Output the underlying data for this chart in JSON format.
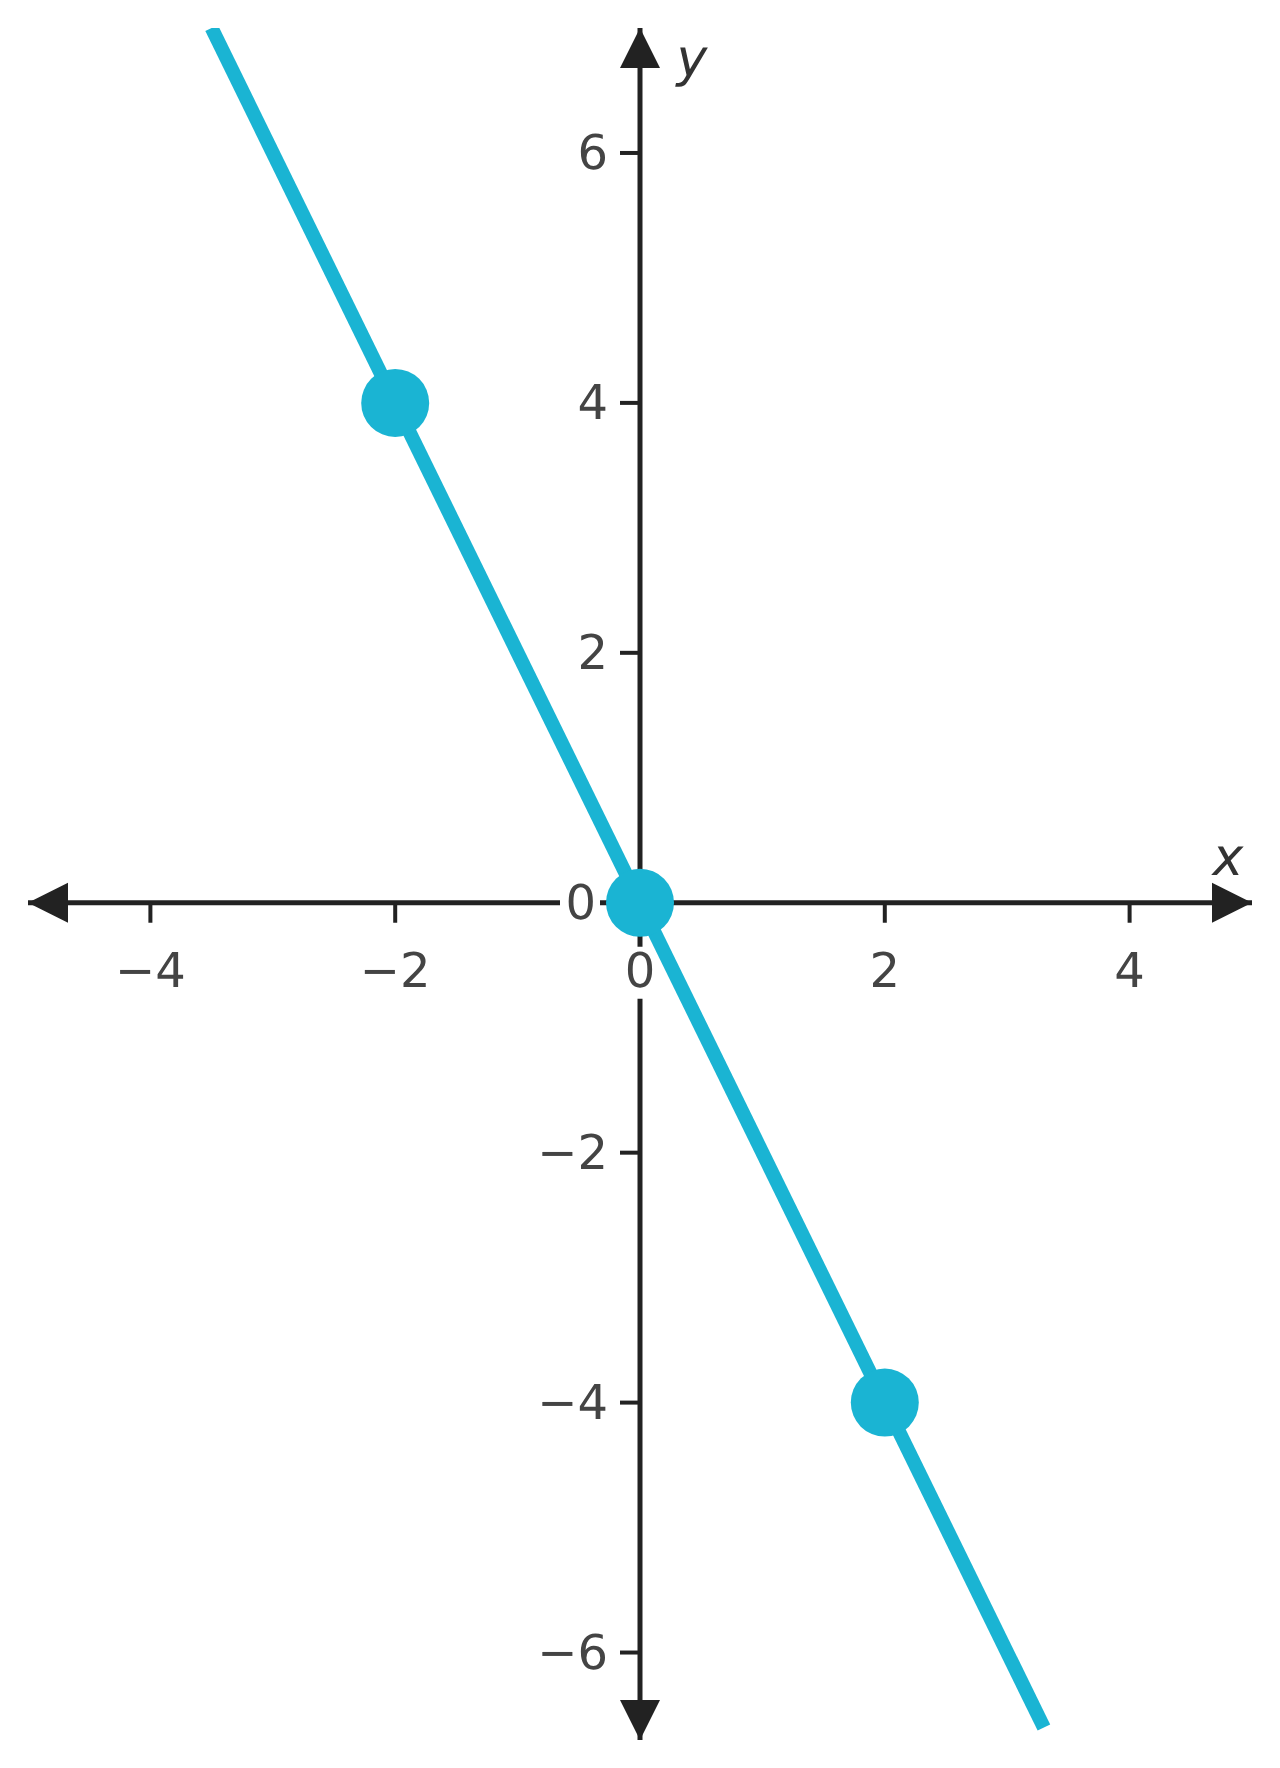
{
  "chart_data": {
    "type": "line",
    "xlabel": "x",
    "ylabel": "y",
    "xlim": [
      -5,
      5
    ],
    "ylim": [
      -6.7,
      7
    ],
    "xticks": [
      {
        "value": -4,
        "label": "−4"
      },
      {
        "value": -2,
        "label": "−2"
      },
      0,
      2,
      4
    ],
    "yticks": [
      {
        "value": -6,
        "label": "−6"
      },
      {
        "value": -4,
        "label": "−4"
      },
      {
        "value": -2,
        "label": "−2"
      },
      0,
      2,
      4,
      6
    ],
    "series": [
      {
        "color": "#1ab4d3",
        "marker": "none",
        "x": [
          -3.5,
          3.3
        ],
        "values": [
          7,
          -6.6
        ]
      },
      {
        "type": "scatter",
        "color": "#1ab4d3",
        "marker": "circle",
        "x": [
          -2,
          0,
          2
        ],
        "values": [
          4,
          0,
          -4
        ]
      }
    ]
  }
}
